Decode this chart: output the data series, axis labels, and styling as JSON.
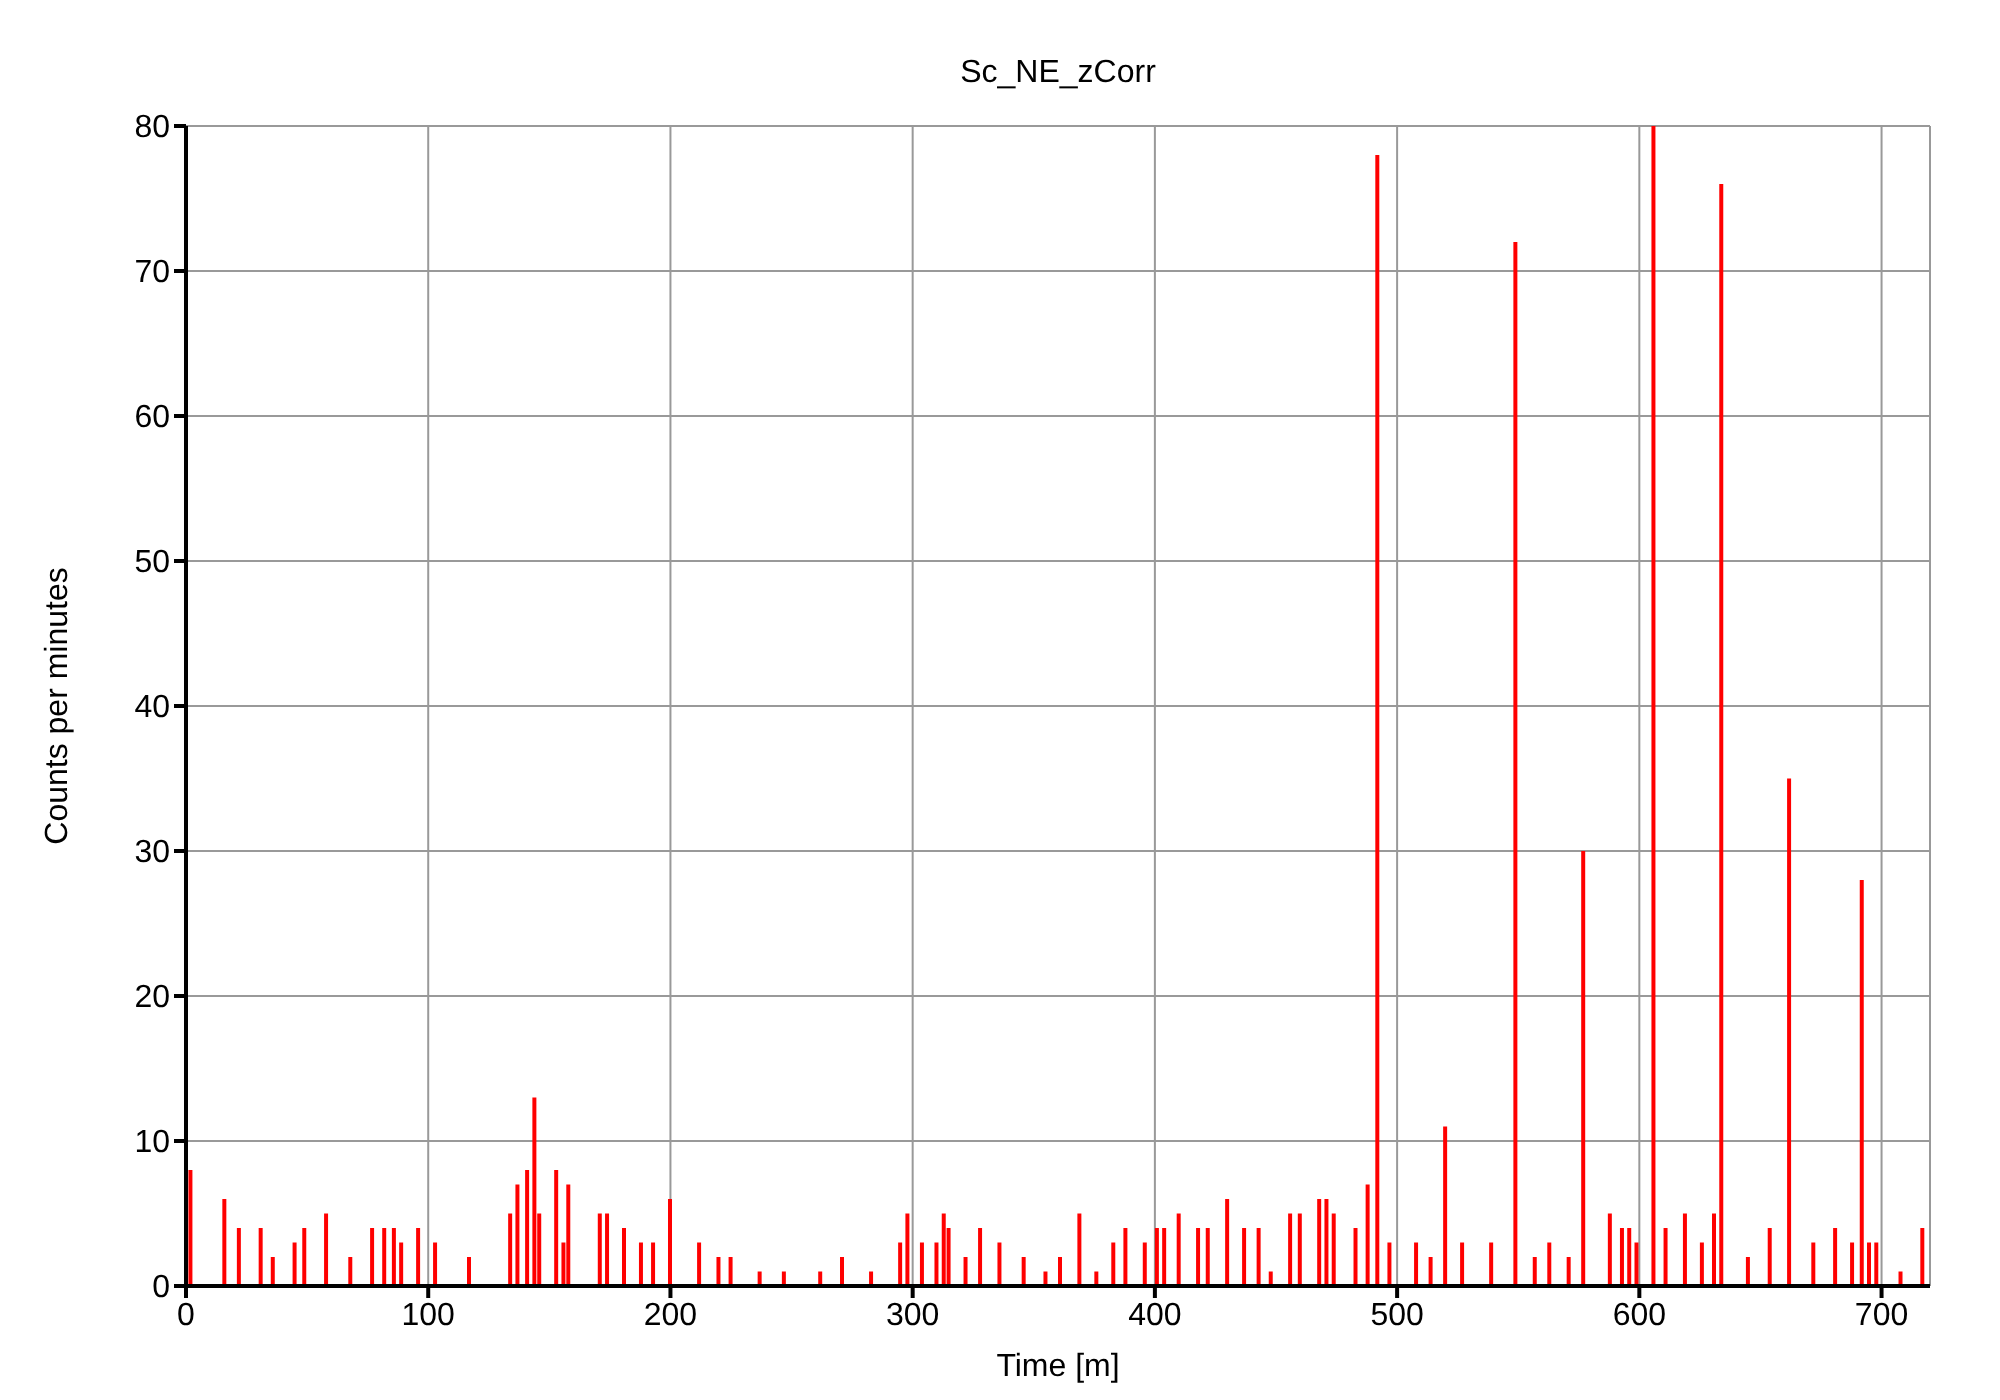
{
  "chart_data": {
    "type": "bar",
    "title": "Sc_NE_zCorr",
    "xlabel": "Time [m]",
    "ylabel": "Counts per minutes",
    "x": [
      2,
      16,
      22,
      31,
      36,
      45,
      49,
      58,
      68,
      77,
      82,
      86,
      89,
      96,
      103,
      117,
      134,
      137,
      141,
      144,
      146,
      153,
      156,
      158,
      171,
      174,
      181,
      188,
      193,
      200,
      212,
      220,
      225,
      237,
      247,
      262,
      271,
      283,
      295,
      298,
      304,
      310,
      313,
      315,
      322,
      328,
      336,
      346,
      355,
      361,
      369,
      376,
      383,
      388,
      396,
      401,
      404,
      410,
      418,
      422,
      430,
      437,
      443,
      448,
      456,
      460,
      468,
      471,
      474,
      483,
      488,
      492,
      497,
      508,
      514,
      520,
      527,
      539,
      549,
      557,
      563,
      571,
      577,
      588,
      593,
      596,
      599,
      606,
      611,
      619,
      626,
      631,
      634,
      645,
      654,
      662,
      672,
      681,
      688,
      692,
      695,
      698,
      708,
      717
    ],
    "values": [
      8,
      6,
      4,
      4,
      2,
      3,
      4,
      5,
      2,
      4,
      4,
      4,
      3,
      4,
      3,
      2,
      5,
      7,
      8,
      13,
      5,
      8,
      3,
      7,
      5,
      5,
      4,
      3,
      3,
      6,
      3,
      2,
      2,
      1,
      1,
      1,
      2,
      1,
      3,
      5,
      3,
      3,
      5,
      4,
      2,
      4,
      3,
      2,
      1,
      2,
      5,
      1,
      3,
      4,
      3,
      4,
      4,
      5,
      4,
      4,
      6,
      4,
      4,
      1,
      5,
      5,
      6,
      6,
      5,
      4,
      7,
      78,
      3,
      3,
      2,
      11,
      3,
      3,
      72,
      2,
      3,
      2,
      30,
      5,
      4,
      4,
      3,
      80,
      4,
      5,
      3,
      5,
      76,
      2,
      4,
      35,
      3,
      4,
      3,
      28,
      3,
      3,
      1,
      4
    ],
    "color": "#ff0000",
    "xlim": [
      0,
      720
    ],
    "xticks": [
      0,
      100,
      200,
      300,
      400,
      500,
      600,
      700
    ],
    "ylim": [
      0,
      80
    ],
    "yticks": [
      0,
      10,
      20,
      30,
      40,
      50,
      60,
      70,
      80
    ],
    "grid": true
  }
}
